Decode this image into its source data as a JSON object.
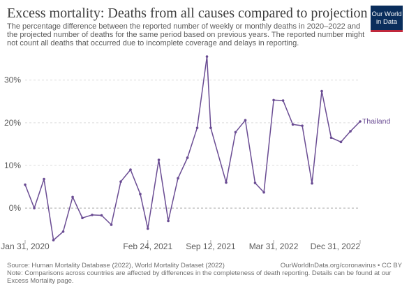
{
  "header": {
    "title": "Excess mortality: Deaths from all causes compared to projection",
    "subtitle": "The percentage difference between the reported number of weekly or monthly deaths in 2020–2022 and the projected number of deaths for the same period based on previous years. The reported number might not count all deaths that occurred due to incomplete coverage and delays in reporting."
  },
  "logo": {
    "line1": "Our World",
    "line2": "in Data"
  },
  "footer": {
    "source": "Source: Human Mortality Database (2022), World Mortality Dataset (2022)",
    "link": "OurWorldInData.org/coronavirus • CC BY",
    "note": "Note: Comparisons across countries are affected by differences in the completeness of death reporting. Details can be found at our Excess Mortality page."
  },
  "chart_data": {
    "type": "line",
    "title": "Excess mortality: Deaths from all causes compared to projection",
    "xlabel": "",
    "ylabel": "",
    "ylim": [
      -7.5,
      36
    ],
    "y_ticks": [
      0,
      10,
      20,
      30
    ],
    "y_tick_labels": [
      "0%",
      "10%",
      "20%",
      "30%"
    ],
    "x_ticks": [
      "2020-01-31",
      "2021-02-24",
      "2021-09-12",
      "2022-03-31",
      "2022-12-31"
    ],
    "x_tick_labels": [
      "Jan 31, 2020",
      "Feb 24, 2021",
      "Sep 12, 2021",
      "Mar 31, 2022",
      "Dec 31, 2022"
    ],
    "xlim": [
      "2020-01-31",
      "2022-12-31"
    ],
    "grid": "horizontal dashed",
    "legend": "none; series labeled at line end",
    "color": "#6a4c93",
    "series": [
      {
        "name": "Thailand",
        "points": [
          [
            "2020-01-31",
            5.5
          ],
          [
            "2020-02-29",
            0.0
          ],
          [
            "2020-03-31",
            6.8
          ],
          [
            "2020-04-30",
            -7.5
          ],
          [
            "2020-05-31",
            -5.5
          ],
          [
            "2020-06-30",
            2.6
          ],
          [
            "2020-07-31",
            -2.3
          ],
          [
            "2020-08-31",
            -1.6
          ],
          [
            "2020-09-30",
            -1.7
          ],
          [
            "2020-10-31",
            -3.9
          ],
          [
            "2020-11-30",
            6.2
          ],
          [
            "2020-12-31",
            9.0
          ],
          [
            "2021-01-31",
            3.3
          ],
          [
            "2021-02-24",
            -4.8
          ],
          [
            "2021-03-31",
            11.3
          ],
          [
            "2021-04-30",
            -3.0
          ],
          [
            "2021-05-31",
            7.0
          ],
          [
            "2021-06-30",
            11.8
          ],
          [
            "2021-07-31",
            18.8
          ],
          [
            "2021-08-31",
            35.5
          ],
          [
            "2021-09-12",
            18.8
          ],
          [
            "2021-10-31",
            6.0
          ],
          [
            "2021-11-30",
            17.8
          ],
          [
            "2021-12-31",
            20.6
          ],
          [
            "2022-01-31",
            5.9
          ],
          [
            "2022-02-28",
            3.7
          ],
          [
            "2022-03-31",
            25.3
          ],
          [
            "2022-04-30",
            25.2
          ],
          [
            "2022-05-31",
            19.6
          ],
          [
            "2022-06-30",
            19.3
          ],
          [
            "2022-07-31",
            5.8
          ],
          [
            "2022-08-31",
            27.4
          ],
          [
            "2022-09-30",
            16.5
          ],
          [
            "2022-10-31",
            15.5
          ],
          [
            "2022-11-30",
            18.0
          ],
          [
            "2022-12-31",
            20.3
          ]
        ]
      }
    ]
  }
}
